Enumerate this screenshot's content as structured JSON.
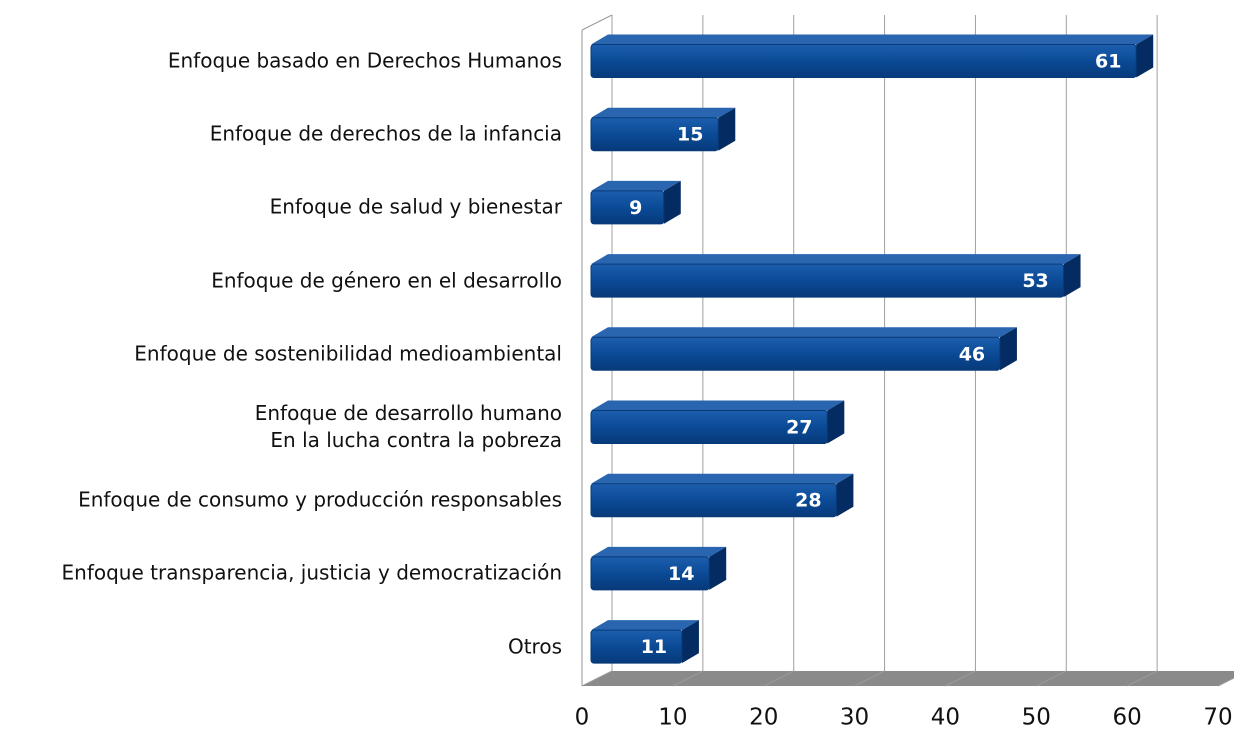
{
  "chart_data": {
    "type": "bar",
    "orientation": "horizontal",
    "categories": [
      "Enfoque basado en Derechos Humanos",
      "Enfoque de derechos de la infancia",
      "Enfoque de salud y bienestar",
      "Enfoque de género en el desarrollo",
      "Enfoque de sostenibilidad medioambiental",
      "Enfoque de desarrollo humano\nEn la lucha contra la pobreza",
      "Enfoque de consumo y producción responsables",
      "Enfoque transparencia, justicia y democratización",
      "Otros"
    ],
    "values": [
      61,
      15,
      9,
      53,
      46,
      27,
      28,
      14,
      11
    ],
    "color": "#0b4a96",
    "xlim": [
      0,
      70
    ],
    "xticks": [
      0,
      10,
      20,
      30,
      40,
      50,
      60,
      70
    ],
    "grid": true
  }
}
